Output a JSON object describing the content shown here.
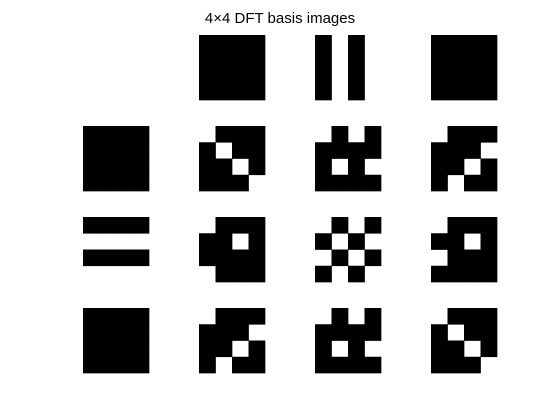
{
  "figure": {
    "title": "4×4 DFT basis images"
  },
  "colors": {
    "black": "#000000",
    "white": "#ffffff",
    "background": "#ffffff"
  },
  "grid": {
    "rows": 4,
    "cols": 4,
    "cell_rows": 4,
    "cell_cols": 4
  },
  "basis_images": [
    [
      [
        [
          0,
          0,
          0,
          0
        ],
        [
          0,
          0,
          0,
          0
        ],
        [
          0,
          0,
          0,
          0
        ],
        [
          0,
          0,
          0,
          0
        ]
      ],
      [
        [
          1,
          1,
          1,
          1
        ],
        [
          1,
          1,
          1,
          1
        ],
        [
          1,
          1,
          1,
          1
        ],
        [
          1,
          1,
          1,
          1
        ]
      ],
      [
        [
          1,
          0,
          1,
          0
        ],
        [
          1,
          0,
          1,
          0
        ],
        [
          1,
          0,
          1,
          0
        ],
        [
          1,
          0,
          1,
          0
        ]
      ],
      [
        [
          1,
          1,
          1,
          1
        ],
        [
          1,
          1,
          1,
          1
        ],
        [
          1,
          1,
          1,
          1
        ],
        [
          1,
          1,
          1,
          1
        ]
      ]
    ],
    [
      [
        [
          1,
          1,
          1,
          1
        ],
        [
          1,
          1,
          1,
          1
        ],
        [
          1,
          1,
          1,
          1
        ],
        [
          1,
          1,
          1,
          1
        ]
      ],
      [
        [
          0,
          1,
          1,
          1
        ],
        [
          1,
          0,
          1,
          1
        ],
        [
          1,
          1,
          0,
          1
        ],
        [
          1,
          1,
          1,
          0
        ]
      ],
      [
        [
          0,
          1,
          0,
          1
        ],
        [
          1,
          1,
          1,
          1
        ],
        [
          1,
          0,
          1,
          0
        ],
        [
          1,
          1,
          1,
          1
        ]
      ],
      [
        [
          0,
          1,
          1,
          1
        ],
        [
          1,
          1,
          1,
          0
        ],
        [
          1,
          1,
          0,
          1
        ],
        [
          1,
          0,
          1,
          1
        ]
      ]
    ],
    [
      [
        [
          1,
          1,
          1,
          1
        ],
        [
          0,
          0,
          0,
          0
        ],
        [
          1,
          1,
          1,
          1
        ],
        [
          0,
          0,
          0,
          0
        ]
      ],
      [
        [
          0,
          1,
          1,
          1
        ],
        [
          1,
          1,
          0,
          1
        ],
        [
          1,
          1,
          1,
          1
        ],
        [
          0,
          1,
          1,
          1
        ]
      ],
      [
        [
          0,
          1,
          0,
          1
        ],
        [
          1,
          0,
          1,
          0
        ],
        [
          0,
          1,
          0,
          1
        ],
        [
          1,
          0,
          1,
          0
        ]
      ],
      [
        [
          0,
          1,
          1,
          1
        ],
        [
          1,
          1,
          0,
          1
        ],
        [
          0,
          1,
          1,
          1
        ],
        [
          1,
          1,
          1,
          1
        ]
      ]
    ],
    [
      [
        [
          1,
          1,
          1,
          1
        ],
        [
          1,
          1,
          1,
          1
        ],
        [
          1,
          1,
          1,
          1
        ],
        [
          1,
          1,
          1,
          1
        ]
      ],
      [
        [
          0,
          1,
          1,
          1
        ],
        [
          1,
          1,
          1,
          0
        ],
        [
          1,
          1,
          0,
          1
        ],
        [
          1,
          0,
          1,
          1
        ]
      ],
      [
        [
          0,
          1,
          0,
          1
        ],
        [
          1,
          1,
          1,
          1
        ],
        [
          1,
          0,
          1,
          0
        ],
        [
          1,
          1,
          1,
          1
        ]
      ],
      [
        [
          0,
          1,
          1,
          1
        ],
        [
          1,
          0,
          1,
          1
        ],
        [
          1,
          1,
          0,
          1
        ],
        [
          1,
          1,
          1,
          0
        ]
      ]
    ]
  ]
}
